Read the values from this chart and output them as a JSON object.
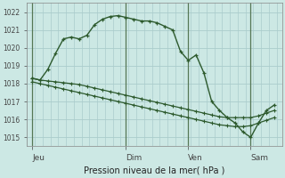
{
  "xlabel": "Pression niveau de la mer( hPa )",
  "ylim": [
    1014.5,
    1022.5
  ],
  "yticks": [
    1015,
    1016,
    1017,
    1018,
    1019,
    1020,
    1021,
    1022
  ],
  "bg_color": "#cce8e4",
  "grid_color": "#aacccc",
  "line_color": "#2d5a2d",
  "xtick_labels": [
    "Jeu",
    "Dim",
    "Ven",
    "Sam"
  ],
  "xtick_positions": [
    0,
    36,
    60,
    84
  ],
  "xlim": [
    -2,
    96
  ],
  "total_steps": 96,
  "vline_positions": [
    0,
    36,
    60,
    84
  ],
  "series1_x": [
    0,
    3,
    6,
    9,
    12,
    15,
    18,
    21,
    24,
    27,
    30,
    33,
    36,
    39,
    42,
    45,
    48,
    51,
    54,
    57,
    60,
    63,
    66,
    69,
    72,
    75,
    78,
    81,
    84,
    87,
    90,
    93
  ],
  "series1_y": [
    1018.3,
    1018.2,
    1018.8,
    1019.7,
    1020.5,
    1020.6,
    1020.5,
    1020.7,
    1021.3,
    1021.6,
    1021.75,
    1021.8,
    1021.7,
    1021.6,
    1021.5,
    1021.5,
    1021.4,
    1021.2,
    1021.0,
    1019.8,
    1019.3,
    1019.6,
    1018.6,
    1017.0,
    1016.5,
    1016.1,
    1015.8,
    1015.3,
    1015.0,
    1015.8,
    1016.5,
    1016.8
  ],
  "series2_x": [
    0,
    3,
    6,
    9,
    12,
    15,
    18,
    21,
    24,
    27,
    30,
    33,
    36,
    39,
    42,
    45,
    48,
    51,
    54,
    57,
    60,
    63,
    66,
    69,
    72,
    75,
    78,
    81,
    84,
    87,
    90,
    93
  ],
  "series2_y": [
    1018.3,
    1018.2,
    1018.15,
    1018.1,
    1018.05,
    1018.0,
    1017.95,
    1017.85,
    1017.75,
    1017.65,
    1017.55,
    1017.45,
    1017.35,
    1017.25,
    1017.15,
    1017.05,
    1016.95,
    1016.85,
    1016.75,
    1016.65,
    1016.55,
    1016.45,
    1016.35,
    1016.25,
    1016.15,
    1016.1,
    1016.1,
    1016.1,
    1016.1,
    1016.2,
    1016.35,
    1016.5
  ],
  "series3_x": [
    0,
    3,
    6,
    9,
    12,
    15,
    18,
    21,
    24,
    27,
    30,
    33,
    36,
    39,
    42,
    45,
    48,
    51,
    54,
    57,
    60,
    63,
    66,
    69,
    72,
    75,
    78,
    81,
    84,
    87,
    90,
    93
  ],
  "series3_y": [
    1018.1,
    1018.0,
    1017.9,
    1017.8,
    1017.7,
    1017.6,
    1017.5,
    1017.4,
    1017.3,
    1017.2,
    1017.1,
    1017.0,
    1016.9,
    1016.8,
    1016.7,
    1016.6,
    1016.5,
    1016.4,
    1016.3,
    1016.2,
    1016.1,
    1016.0,
    1015.9,
    1015.8,
    1015.7,
    1015.65,
    1015.6,
    1015.6,
    1015.65,
    1015.8,
    1015.95,
    1016.1
  ]
}
